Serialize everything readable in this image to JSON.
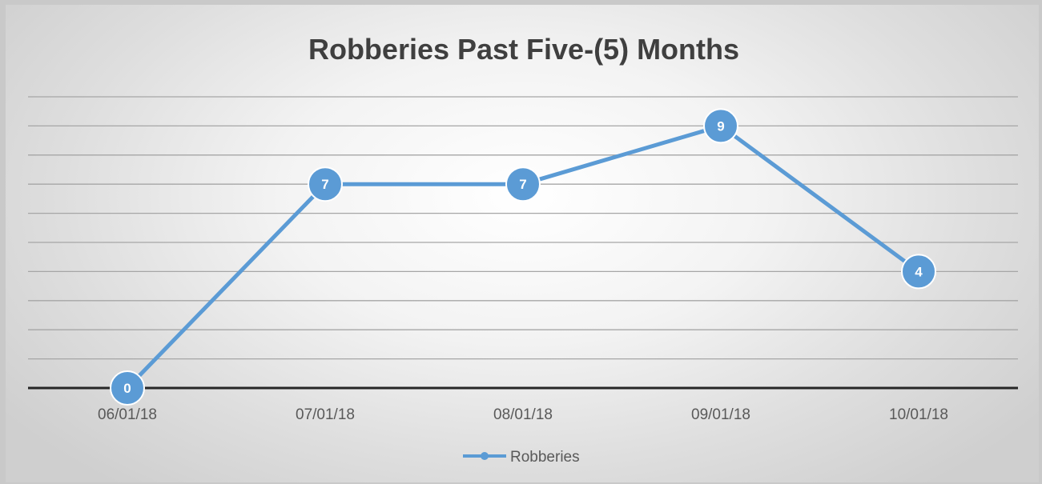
{
  "chart_data": {
    "type": "line",
    "title": "Robberies Past Five-(5) Months",
    "xlabel": "",
    "ylabel": "",
    "categories": [
      "06/01/18",
      "07/01/18",
      "08/01/18",
      "09/01/18",
      "10/01/18"
    ],
    "series": [
      {
        "name": "Robberies",
        "values": [
          0,
          7,
          7,
          9,
          4
        ]
      }
    ],
    "ylim": [
      0,
      10
    ],
    "y_gridline_step": 1,
    "grid": true,
    "data_labels": true,
    "legend": "bottom",
    "colors": {
      "series": "#5b9bd5",
      "gridline": "#a6a6a6",
      "axis": "#262626"
    }
  }
}
